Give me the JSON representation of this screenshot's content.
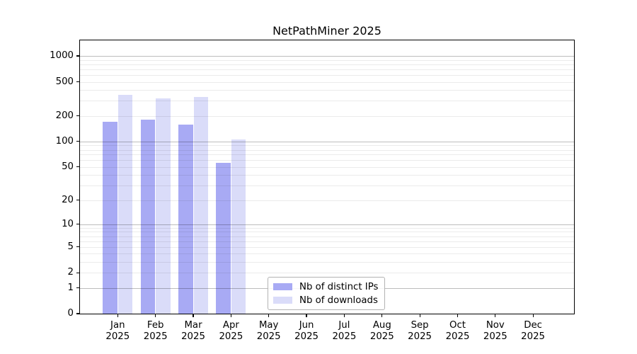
{
  "title": "NetPathMiner 2025",
  "chart_data": {
    "type": "bar",
    "title": "NetPathMiner 2025",
    "xlabel": "",
    "ylabel": "",
    "categories": [
      "Jan 2025",
      "Feb 2025",
      "Mar 2025",
      "Apr 2025",
      "May 2025",
      "Jun 2025",
      "Jul 2025",
      "Aug 2025",
      "Sep 2025",
      "Oct 2025",
      "Nov 2025",
      "Dec 2025"
    ],
    "series": [
      {
        "name": "Nb of distinct IPs",
        "color": "#a8aaf4",
        "values": [
          170,
          180,
          159,
          56,
          0,
          0,
          0,
          0,
          0,
          0,
          0,
          0
        ]
      },
      {
        "name": "Nb of downloads",
        "color": "#dadcf9",
        "values": [
          349,
          322,
          330,
          105,
          0,
          0,
          0,
          0,
          0,
          0,
          0,
          0
        ]
      }
    ],
    "y_axis": {
      "scale": "log10(1+x)",
      "tick_values": [
        0,
        1,
        2,
        5,
        10,
        20,
        50,
        100,
        200,
        500,
        1000
      ],
      "tick_labels": [
        "0",
        "1",
        "2",
        "5",
        "10",
        "20",
        "50",
        "100",
        "200",
        "500",
        "1000"
      ],
      "ylim": [
        0,
        1520
      ]
    },
    "grid": {
      "major_values": [
        1,
        10,
        100,
        1000
      ],
      "minor_values": [
        2,
        3,
        4,
        5,
        6,
        7,
        8,
        9,
        20,
        30,
        40,
        50,
        60,
        70,
        80,
        90,
        200,
        300,
        400,
        500,
        600,
        700,
        800,
        900
      ],
      "major_color": "#bdbdbd",
      "minor_color": "#ebebeb"
    },
    "legend": {
      "position": "bottom-center",
      "entries": [
        "Nb of distinct IPs",
        "Nb of downloads"
      ]
    }
  },
  "colors": {
    "background": "#ffffff",
    "axis": "#000000",
    "text": "#000000",
    "legend_border": "#b3b3b3"
  }
}
